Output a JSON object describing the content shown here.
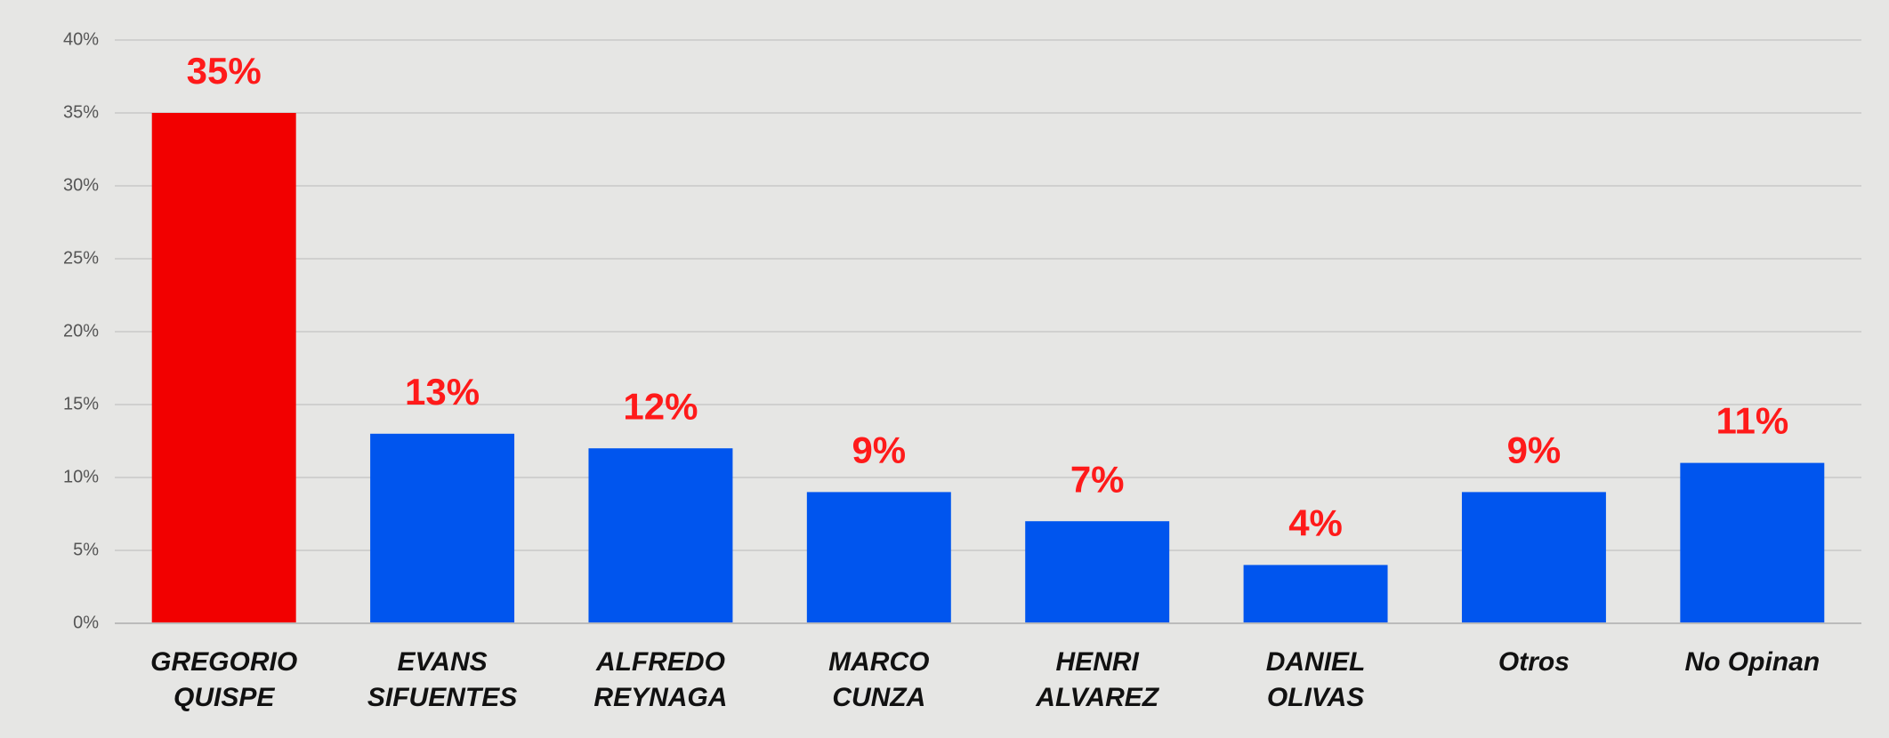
{
  "chart_data": {
    "type": "bar",
    "categories": [
      "GREGORIO QUISPE",
      "EVANS SIFUENTES",
      "ALFREDO REYNAGA",
      "MARCO CUNZA",
      "HENRI ALVAREZ",
      "DANIEL OLIVAS",
      "Otros",
      "No Opinan"
    ],
    "values": [
      35,
      13,
      12,
      9,
      7,
      4,
      9,
      11
    ],
    "value_labels": [
      "35%",
      "13%",
      "12%",
      "9%",
      "7%",
      "4%",
      "9%",
      "11%"
    ],
    "colors": [
      "#f20000",
      "#0055ee",
      "#0055ee",
      "#0055ee",
      "#0055ee",
      "#0055ee",
      "#0055ee",
      "#0055ee"
    ],
    "ylim": [
      0,
      40
    ],
    "yticks": [
      {
        "value": 0,
        "label": "0%"
      },
      {
        "value": 5,
        "label": "5%"
      },
      {
        "value": 10,
        "label": "10%"
      },
      {
        "value": 15,
        "label": "15%"
      },
      {
        "value": 20,
        "label": "20%"
      },
      {
        "value": 25,
        "label": "25%"
      },
      {
        "value": 30,
        "label": "30%"
      },
      {
        "value": 35,
        "label": "35%"
      },
      {
        "value": 40,
        "label": "40%"
      }
    ],
    "grid": true
  }
}
